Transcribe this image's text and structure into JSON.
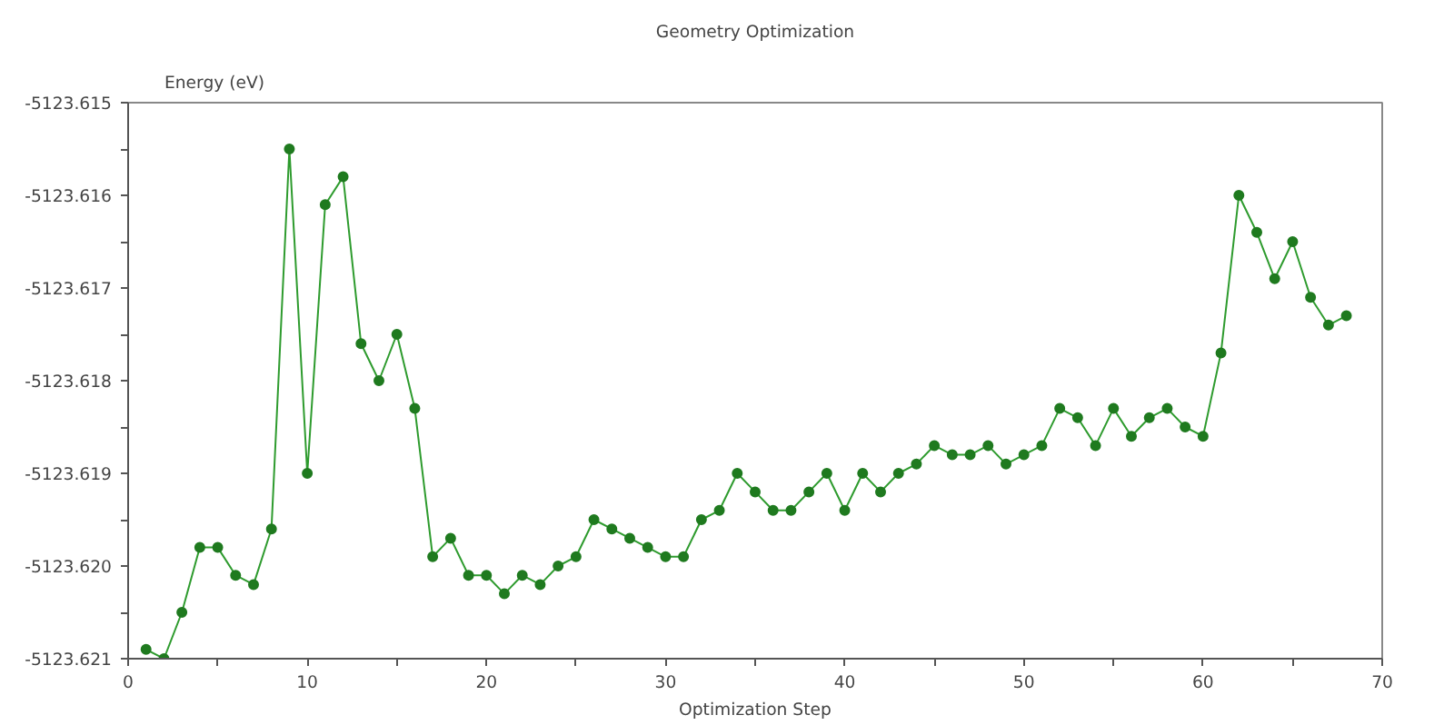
{
  "chart_data": {
    "type": "line",
    "title": "Geometry Optimization",
    "xlabel": "Optimization Step",
    "ylabel": "Energy (eV)",
    "x": [
      1,
      2,
      3,
      4,
      5,
      6,
      7,
      8,
      9,
      10,
      11,
      12,
      13,
      14,
      15,
      16,
      17,
      18,
      19,
      20,
      21,
      22,
      23,
      24,
      25,
      26,
      27,
      28,
      29,
      30,
      31,
      32,
      33,
      34,
      35,
      36,
      37,
      38,
      39,
      40,
      41,
      42,
      43,
      44,
      45,
      46,
      47,
      48,
      49,
      50,
      51,
      52,
      53,
      54,
      55,
      56,
      57,
      58,
      59,
      60,
      61,
      62,
      63,
      64,
      65,
      66,
      67,
      68
    ],
    "series": [
      {
        "color": "#2e9b2e",
        "values": [
          -5123.6209,
          -5123.621,
          -5123.6205,
          -5123.6198,
          -5123.6198,
          -5123.6201,
          -5123.6202,
          -5123.6196,
          -5123.6155,
          -5123.619,
          -5123.6161,
          -5123.6158,
          -5123.6176,
          -5123.618,
          -5123.6175,
          -5123.6183,
          -5123.6199,
          -5123.6197,
          -5123.6201,
          -5123.6201,
          -5123.6203,
          -5123.6201,
          -5123.6202,
          -5123.62,
          -5123.6199,
          -5123.6195,
          -5123.6196,
          -5123.6197,
          -5123.6198,
          -5123.6199,
          -5123.6199,
          -5123.6195,
          -5123.6194,
          -5123.619,
          -5123.6192,
          -5123.6194,
          -5123.6194,
          -5123.6192,
          -5123.619,
          -5123.6194,
          -5123.619,
          -5123.6192,
          -5123.619,
          -5123.6189,
          -5123.6187,
          -5123.6188,
          -5123.6188,
          -5123.6187,
          -5123.6189,
          -5123.6188,
          -5123.6187,
          -5123.6183,
          -5123.6184,
          -5123.6187,
          -5123.6183,
          -5123.6186,
          -5123.6184,
          -5123.6183,
          -5123.6185,
          -5123.6186,
          -5123.6177,
          -5123.616,
          -5123.6164,
          -5123.6169,
          -5123.6165,
          -5123.6171,
          -5123.6174,
          -5123.6173
        ]
      }
    ],
    "xlim": [
      0,
      70
    ],
    "xticks": [
      0,
      {
        "value": 5,
        "label": null
      },
      10,
      {
        "value": 15,
        "label": null
      },
      20,
      {
        "value": 25,
        "label": null
      },
      30,
      {
        "value": 35,
        "label": null
      },
      40,
      {
        "value": 45,
        "label": null
      },
      50,
      {
        "value": 55,
        "label": null
      },
      60,
      {
        "value": 65,
        "label": null
      },
      70
    ],
    "ylim": [
      -5123.621,
      -5123.615
    ],
    "yticks": [
      -5123.621,
      {
        "value": -5123.6205,
        "label": null
      },
      {
        "value": -5123.62,
        "label": "-5123.620"
      },
      {
        "value": -5123.6195,
        "label": null
      },
      -5123.619,
      {
        "value": -5123.6185,
        "label": null
      },
      -5123.618,
      {
        "value": -5123.6175,
        "label": null
      },
      -5123.617,
      {
        "value": -5123.6165,
        "label": null
      },
      -5123.616,
      {
        "value": -5123.6155,
        "label": null
      },
      -5123.615
    ],
    "grid": false,
    "marker": "circle",
    "line_style": "solid"
  }
}
